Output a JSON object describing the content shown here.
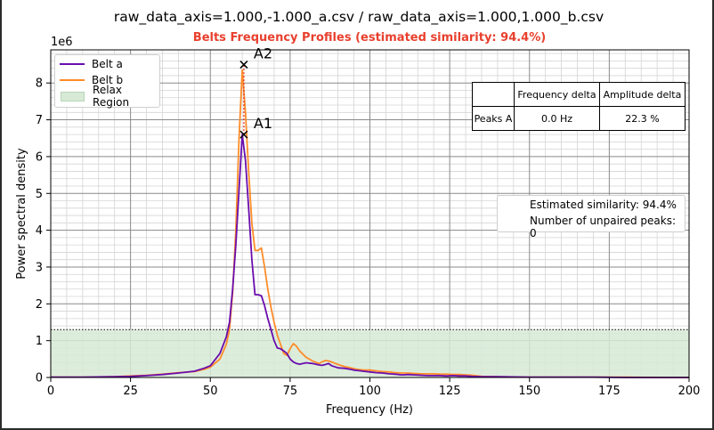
{
  "figure_title": "raw_data_axis=1.000,-1.000_a.csv / raw_data_axis=1.000,1.000_b.csv",
  "colors": {
    "belt_a": "#6a0dad",
    "belt_b": "#ff8c28",
    "subtitle": "#e8402e",
    "relax_fill": "#d7ead6"
  },
  "chart_data": {
    "type": "line",
    "title": "Belts Frequency Profiles (estimated similarity: 94.4%)",
    "xlabel": "Frequency (Hz)",
    "ylabel": "Power spectral density",
    "y_multiplier": "1e6",
    "xlim": [
      0,
      200
    ],
    "ylim": [
      0,
      8.9
    ],
    "x_ticks": [
      0,
      25,
      50,
      75,
      100,
      125,
      150,
      175,
      200
    ],
    "y_ticks": [
      0,
      1,
      2,
      3,
      4,
      5,
      6,
      7,
      8
    ],
    "grid": true,
    "legend_position": "top-left",
    "series": [
      {
        "name": "Belt a",
        "x": [
          0,
          10,
          20,
          25,
          30,
          35,
          40,
          45,
          48,
          50,
          53,
          55,
          56,
          57,
          58,
          59,
          60,
          61,
          62,
          63,
          64,
          65,
          66,
          67,
          68,
          69,
          70,
          71,
          72,
          73,
          74,
          75,
          76,
          77,
          78,
          80,
          82,
          84,
          85,
          86,
          87,
          88,
          90,
          92,
          94,
          95,
          96,
          98,
          100,
          102,
          104,
          106,
          108,
          110,
          112,
          114,
          116,
          118,
          120,
          122,
          124,
          126,
          128,
          130,
          132,
          135,
          140,
          150,
          160,
          170,
          180,
          190,
          200
        ],
        "values": [
          0.01,
          0.01,
          0.02,
          0.03,
          0.05,
          0.08,
          0.12,
          0.17,
          0.25,
          0.32,
          0.65,
          1.1,
          1.5,
          2.4,
          3.6,
          5.1,
          6.6,
          5.9,
          4.6,
          3.2,
          2.25,
          2.25,
          2.22,
          1.95,
          1.6,
          1.3,
          1.0,
          0.8,
          0.78,
          0.72,
          0.65,
          0.5,
          0.42,
          0.38,
          0.36,
          0.4,
          0.38,
          0.34,
          0.33,
          0.35,
          0.38,
          0.32,
          0.26,
          0.25,
          0.22,
          0.2,
          0.19,
          0.17,
          0.15,
          0.13,
          0.12,
          0.1,
          0.09,
          0.07,
          0.08,
          0.07,
          0.06,
          0.05,
          0.05,
          0.05,
          0.04,
          0.05,
          0.04,
          0.04,
          0.03,
          0.02,
          0.02,
          0.01,
          0.01,
          0.01,
          0.0,
          0.0,
          0.0
        ]
      },
      {
        "name": "Belt b",
        "x": [
          0,
          10,
          20,
          25,
          30,
          35,
          40,
          45,
          48,
          50,
          53,
          55,
          56,
          57,
          58,
          59,
          60,
          61,
          62,
          63,
          64,
          65,
          66,
          67,
          68,
          69,
          70,
          71,
          72,
          73,
          74,
          75,
          76,
          77,
          78,
          80,
          82,
          84,
          85,
          86,
          87,
          88,
          90,
          92,
          94,
          95,
          96,
          98,
          100,
          102,
          104,
          106,
          108,
          110,
          112,
          114,
          116,
          118,
          120,
          122,
          124,
          126,
          128,
          130,
          132,
          135,
          140,
          150,
          160,
          170,
          180,
          190,
          200
        ],
        "values": [
          0.01,
          0.01,
          0.02,
          0.04,
          0.06,
          0.09,
          0.13,
          0.16,
          0.22,
          0.28,
          0.5,
          0.9,
          1.3,
          2.3,
          4.0,
          6.5,
          8.35,
          7.2,
          5.6,
          4.2,
          3.45,
          3.45,
          3.52,
          3.0,
          2.4,
          1.9,
          1.5,
          1.15,
          0.9,
          0.65,
          0.6,
          0.78,
          0.92,
          0.85,
          0.72,
          0.55,
          0.45,
          0.38,
          0.42,
          0.46,
          0.45,
          0.42,
          0.35,
          0.3,
          0.26,
          0.24,
          0.22,
          0.2,
          0.2,
          0.18,
          0.16,
          0.15,
          0.13,
          0.12,
          0.12,
          0.11,
          0.1,
          0.1,
          0.1,
          0.09,
          0.09,
          0.08,
          0.08,
          0.07,
          0.06,
          0.03,
          0.02,
          0.01,
          0.01,
          0.01,
          0.01,
          0.0,
          0.0
        ]
      }
    ],
    "relax_region": {
      "label": "Relax Region",
      "x": [
        0,
        200
      ],
      "y": [
        0,
        1.3
      ]
    },
    "threshold_line": 1.3,
    "peaks": [
      {
        "label": "A1",
        "x": 60.5,
        "y": 6.6
      },
      {
        "label": "A2",
        "x": 60.5,
        "y": 8.5
      }
    ],
    "peak_table": {
      "headers": [
        "",
        "Frequency delta",
        "Amplitude delta"
      ],
      "rows": [
        [
          "Peaks A",
          "0.0 Hz",
          "22.3 %"
        ]
      ]
    },
    "stats": {
      "similarity": "Estimated similarity: 94.4%",
      "unpaired": "Number of unpaired peaks: 0"
    },
    "legend": [
      "Belt a",
      "Belt b",
      "Relax Region"
    ]
  }
}
